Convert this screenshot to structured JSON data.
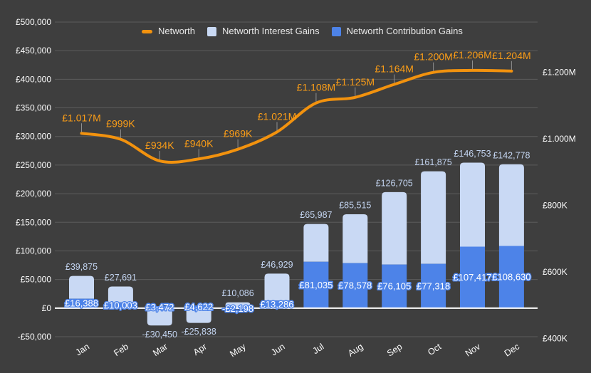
{
  "colors": {
    "background": "#3e3e3e",
    "grid": "#5c5c5c",
    "zero_line": "#ffffff",
    "axis_text": "#fbfbfb",
    "stem": "#8f8f8f",
    "line_series": "#f2920e",
    "line_label": "#fb9d17",
    "interest_bar": "#c9d9f4",
    "interest_label": "#c3d4f0",
    "contribution_bar": "#4d83e8",
    "contribution_label": "#ffffff"
  },
  "chart_data": {
    "type": "combo",
    "legend_position": "top",
    "grid": true,
    "categories": [
      "Jan",
      "Feb",
      "Mar",
      "Apr",
      "May",
      "Jun",
      "Jul",
      "Aug",
      "Sep",
      "Oct",
      "Nov",
      "Dec"
    ],
    "series": [
      {
        "name": "Networth",
        "type": "line",
        "axis": "right",
        "color": "#f2920e",
        "values": [
          1017000,
          999000,
          934000,
          940000,
          969000,
          1021000,
          1108000,
          1125000,
          1164000,
          1200000,
          1206000,
          1204000
        ],
        "labels": [
          "£1.017M",
          "£999K",
          "£934K",
          "£940K",
          "£969K",
          "£1.021M",
          "£1.108M",
          "£1.125M",
          "£1.164M",
          "£1.200M",
          "£1.206M",
          "£1.204M"
        ]
      },
      {
        "name": "Networth Interest Gains",
        "type": "bar",
        "axis": "left",
        "color": "#c9d9f4",
        "values": [
          39875,
          27691,
          -30450,
          -25838,
          10086,
          46929,
          65987,
          85515,
          126705,
          161875,
          146753,
          142778
        ],
        "labels": [
          "£39,875",
          "£27,691",
          "-£30,450",
          "-£25,838",
          "£10,086",
          "£46,929",
          "£65,987",
          "£85,515",
          "£126,705",
          "£161,875",
          "£146,753",
          "£142,778"
        ]
      },
      {
        "name": "Networth Contribution Gains",
        "type": "bar",
        "axis": "left",
        "color": "#4d83e8",
        "values": [
          16388,
          10003,
          3472,
          4622,
          -2198,
          13286,
          81035,
          78578,
          76105,
          77318,
          107417,
          108630
        ],
        "labels": [
          "£16,388",
          "£10,003",
          "£3,472",
          "£4,622",
          "-£2,198",
          "£13,286",
          "£81,035",
          "£78,578",
          "£76,105",
          "£77,318",
          "£107,417",
          "£108,630"
        ]
      }
    ],
    "left_axis": {
      "min": -50000,
      "max": 500000,
      "step": 50000,
      "tick_labels": [
        "£500,000",
        "£450,000",
        "£400,000",
        "£350,000",
        "£300,000",
        "£250,000",
        "£200,000",
        "£150,000",
        "£100,000",
        "£50,000",
        "£0",
        "-£50,000"
      ]
    },
    "right_axis": {
      "tick_values": [
        1200000,
        1000000,
        800000,
        600000,
        400000
      ],
      "tick_labels": [
        "£1.200M",
        "£1.000M",
        "£800K",
        "£600K",
        "£400K"
      ]
    }
  }
}
